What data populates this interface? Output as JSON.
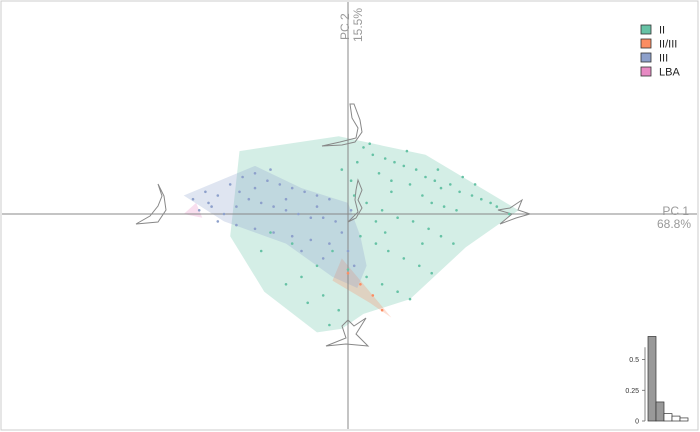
{
  "chart_data": {
    "type": "scatter",
    "title": "",
    "xlabel": "PC 1",
    "xlabel_sub": "68.8%",
    "ylabel": "PC 2",
    "ylabel_sub": "15.5%",
    "xlim": [
      -1.0,
      0.9
    ],
    "ylim": [
      -0.6,
      0.55
    ],
    "grid": false,
    "legend_position": "top-right",
    "series": [
      {
        "name": "II",
        "color": "#66c2a5",
        "hull": [
          [
            -0.35,
            0.17
          ],
          [
            -0.03,
            0.21
          ],
          [
            0.25,
            0.16
          ],
          [
            0.45,
            0.06
          ],
          [
            0.55,
            0.01
          ],
          [
            0.38,
            -0.09
          ],
          [
            0.2,
            -0.23
          ],
          [
            0.05,
            -0.27
          ],
          [
            -0.02,
            -0.31
          ],
          [
            -0.1,
            -0.32
          ],
          [
            -0.27,
            -0.21
          ],
          [
            -0.38,
            -0.06
          ],
          [
            -0.35,
            0.17
          ]
        ],
        "points": [
          [
            0.05,
            0.18
          ],
          [
            0.08,
            0.16
          ],
          [
            0.12,
            0.15
          ],
          [
            0.15,
            0.14
          ],
          [
            0.18,
            0.13
          ],
          [
            0.22,
            0.12
          ],
          [
            0.25,
            0.1
          ],
          [
            0.28,
            0.09
          ],
          [
            0.3,
            0.07
          ],
          [
            0.33,
            0.08
          ],
          [
            0.36,
            0.06
          ],
          [
            0.4,
            0.05
          ],
          [
            0.43,
            0.04
          ],
          [
            0.46,
            0.03
          ],
          [
            0.1,
            0.11
          ],
          [
            0.14,
            0.09
          ],
          [
            0.2,
            0.08
          ],
          [
            0.24,
            0.05
          ],
          [
            0.27,
            0.03
          ],
          [
            0.31,
            0.02
          ],
          [
            0.35,
            0.01
          ],
          [
            0.02,
            0.05
          ],
          [
            0.06,
            0.03
          ],
          [
            0.11,
            0.01
          ],
          [
            0.16,
            -0.01
          ],
          [
            0.21,
            -0.02
          ],
          [
            0.26,
            -0.04
          ],
          [
            0.3,
            -0.06
          ],
          [
            0.34,
            -0.08
          ],
          [
            0.04,
            -0.06
          ],
          [
            0.09,
            -0.08
          ],
          [
            0.13,
            -0.1
          ],
          [
            0.18,
            -0.12
          ],
          [
            0.23,
            -0.14
          ],
          [
            0.27,
            -0.16
          ],
          [
            0.06,
            -0.17
          ],
          [
            0.11,
            -0.19
          ],
          [
            0.16,
            -0.21
          ],
          [
            0.2,
            -0.23
          ],
          [
            -0.05,
            -0.1
          ],
          [
            -0.1,
            -0.14
          ],
          [
            -0.15,
            -0.17
          ],
          [
            -0.2,
            -0.19
          ],
          [
            -0.08,
            -0.22
          ],
          [
            -0.13,
            -0.24
          ],
          [
            -0.03,
            -0.26
          ],
          [
            -0.06,
            -0.3
          ],
          [
            -0.02,
            0.12
          ],
          [
            0.01,
            0.09
          ],
          [
            0.03,
            0.14
          ],
          [
            -0.25,
            -0.05
          ],
          [
            -0.28,
            -0.1
          ],
          [
            -0.18,
            -0.08
          ],
          [
            0.07,
            0.19
          ],
          [
            0.19,
            0.17
          ],
          [
            0.29,
            0.12
          ],
          [
            0.37,
            0.1
          ],
          [
            0.41,
            0.08
          ],
          [
            0.48,
            0.02
          ],
          [
            0.52,
            0.0
          ],
          [
            0.14,
            0.06
          ],
          [
            0.09,
            -0.02
          ],
          [
            0.0,
            -0.15
          ],
          [
            0.24,
            -0.08
          ],
          [
            0.12,
            -0.05
          ]
        ]
      },
      {
        "name": "II/III",
        "color": "#fc8d62",
        "hull": [
          [
            -0.02,
            -0.12
          ],
          [
            -0.05,
            -0.18
          ],
          [
            0.07,
            -0.24
          ],
          [
            0.14,
            -0.28
          ],
          [
            0.1,
            -0.24
          ],
          [
            -0.02,
            -0.12
          ]
        ],
        "points": [
          [
            0.0,
            -0.16
          ],
          [
            0.04,
            -0.19
          ],
          [
            0.08,
            -0.22
          ],
          [
            0.11,
            -0.26
          ]
        ]
      },
      {
        "name": "III",
        "color": "#8da0cb",
        "hull": [
          [
            -0.53,
            0.05
          ],
          [
            -0.3,
            0.13
          ],
          [
            -0.15,
            0.07
          ],
          [
            0.0,
            0.03
          ],
          [
            0.04,
            -0.06
          ],
          [
            0.06,
            -0.14
          ],
          [
            0.03,
            -0.2
          ],
          [
            -0.05,
            -0.17
          ],
          [
            -0.2,
            -0.08
          ],
          [
            -0.4,
            -0.02
          ],
          [
            -0.53,
            0.05
          ]
        ],
        "points": [
          [
            -0.5,
            0.04
          ],
          [
            -0.46,
            0.06
          ],
          [
            -0.42,
            0.05
          ],
          [
            -0.38,
            0.08
          ],
          [
            -0.34,
            0.1
          ],
          [
            -0.3,
            0.11
          ],
          [
            -0.26,
            0.09
          ],
          [
            -0.22,
            0.08
          ],
          [
            -0.18,
            0.07
          ],
          [
            -0.14,
            0.06
          ],
          [
            -0.1,
            0.05
          ],
          [
            -0.06,
            0.04
          ],
          [
            -0.48,
            0.01
          ],
          [
            -0.44,
            0.02
          ],
          [
            -0.4,
            0.0
          ],
          [
            -0.36,
            0.02
          ],
          [
            -0.32,
            0.04
          ],
          [
            -0.28,
            0.03
          ],
          [
            -0.24,
            0.02
          ],
          [
            -0.2,
            0.01
          ],
          [
            -0.16,
            0.0
          ],
          [
            -0.12,
            -0.01
          ],
          [
            -0.08,
            -0.01
          ],
          [
            -0.04,
            -0.02
          ],
          [
            -0.42,
            -0.02
          ],
          [
            -0.36,
            -0.03
          ],
          [
            -0.3,
            -0.04
          ],
          [
            -0.24,
            -0.05
          ],
          [
            -0.18,
            -0.06
          ],
          [
            -0.12,
            -0.07
          ],
          [
            -0.06,
            -0.08
          ],
          [
            -0.3,
            0.07
          ],
          [
            -0.2,
            0.04
          ],
          [
            -0.1,
            0.02
          ],
          [
            -0.02,
            -0.05
          ],
          [
            0.0,
            -0.1
          ],
          [
            0.02,
            -0.14
          ],
          [
            -0.15,
            -0.1
          ],
          [
            -0.25,
            0.12
          ],
          [
            -0.35,
            0.06
          ],
          [
            -0.45,
            0.03
          ],
          [
            0.01,
            0.01
          ],
          [
            -0.08,
            -0.12
          ]
        ]
      },
      {
        "name": "LBA",
        "color": "#e78ac3",
        "hull": [
          [
            -0.53,
            0.0
          ],
          [
            -0.47,
            -0.01
          ],
          [
            -0.49,
            0.03
          ],
          [
            -0.53,
            0.0
          ]
        ],
        "points": []
      }
    ],
    "inset": {
      "type": "bar",
      "tick_labels": [
        "0",
        "0.25",
        "0.5"
      ],
      "ylim": [
        0,
        0.7
      ],
      "values": [
        0.688,
        0.155,
        0.06,
        0.04,
        0.025
      ]
    }
  }
}
